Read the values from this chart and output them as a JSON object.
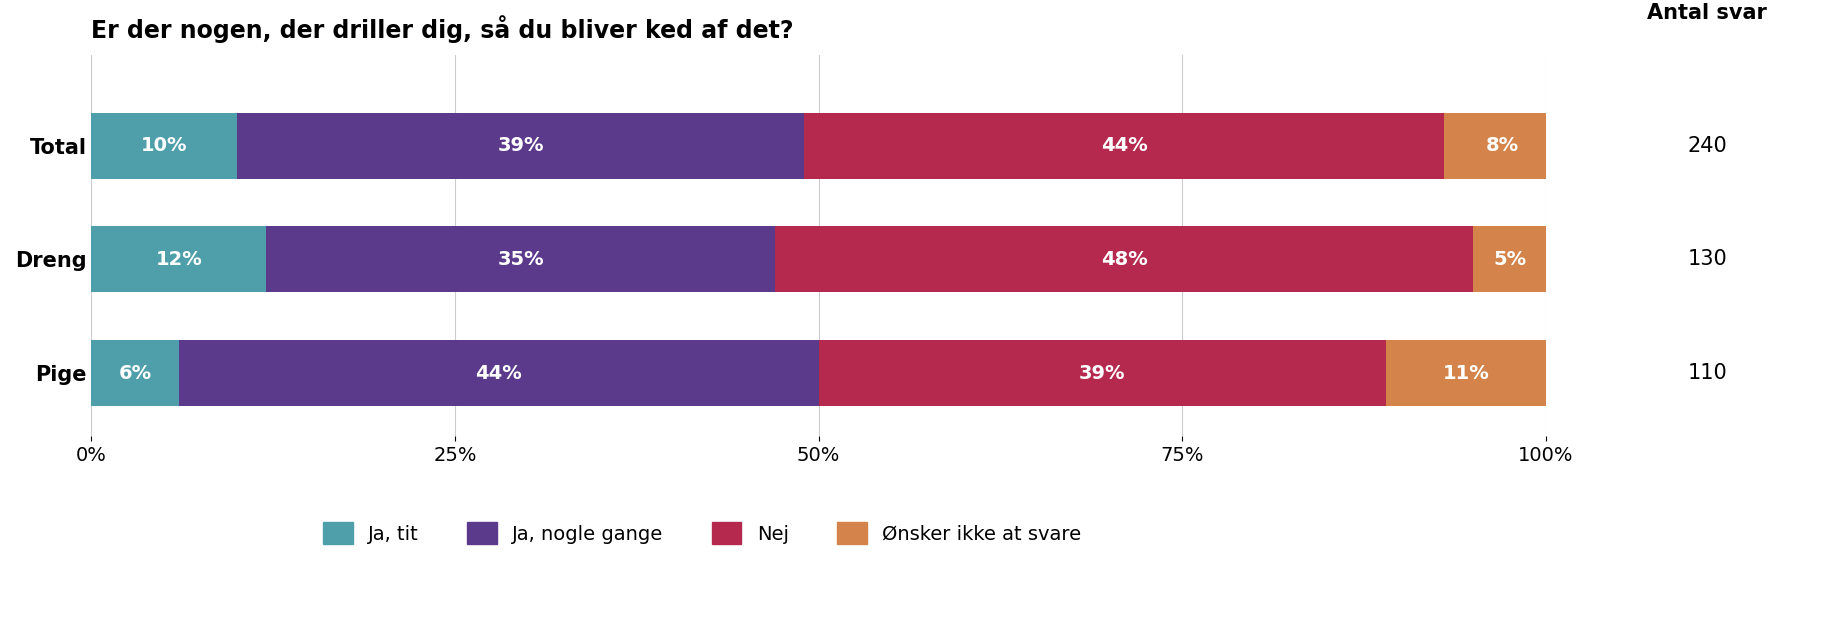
{
  "title": "Er der nogen, der driller dig, så du bliver ked af det?",
  "antal_svar_label": "Antal svar",
  "categories": [
    "Total",
    "Dreng",
    "Pige"
  ],
  "antal_svar": [
    240,
    130,
    110
  ],
  "series": {
    "Ja, tit": [
      10,
      12,
      6
    ],
    "Ja, nogle gange": [
      39,
      35,
      44
    ],
    "Nej": [
      44,
      48,
      39
    ],
    "Ønsker ikke at svare": [
      8,
      5,
      11
    ]
  },
  "colors": {
    "Ja, tit": "#4e9faa",
    "Ja, nogle gange": "#5b3a8c",
    "Nej": "#b5294e",
    "Ønsker ikke at svare": "#d4844a"
  },
  "bar_height": 0.58,
  "xlim": [
    0,
    100
  ],
  "xticks": [
    0,
    25,
    50,
    75,
    100
  ],
  "xticklabels": [
    "0%",
    "25%",
    "50%",
    "75%",
    "100%"
  ],
  "title_fontsize": 17,
  "label_fontsize": 14,
  "tick_fontsize": 14,
  "legend_fontsize": 14,
  "antal_fontsize": 15,
  "category_fontsize": 15
}
